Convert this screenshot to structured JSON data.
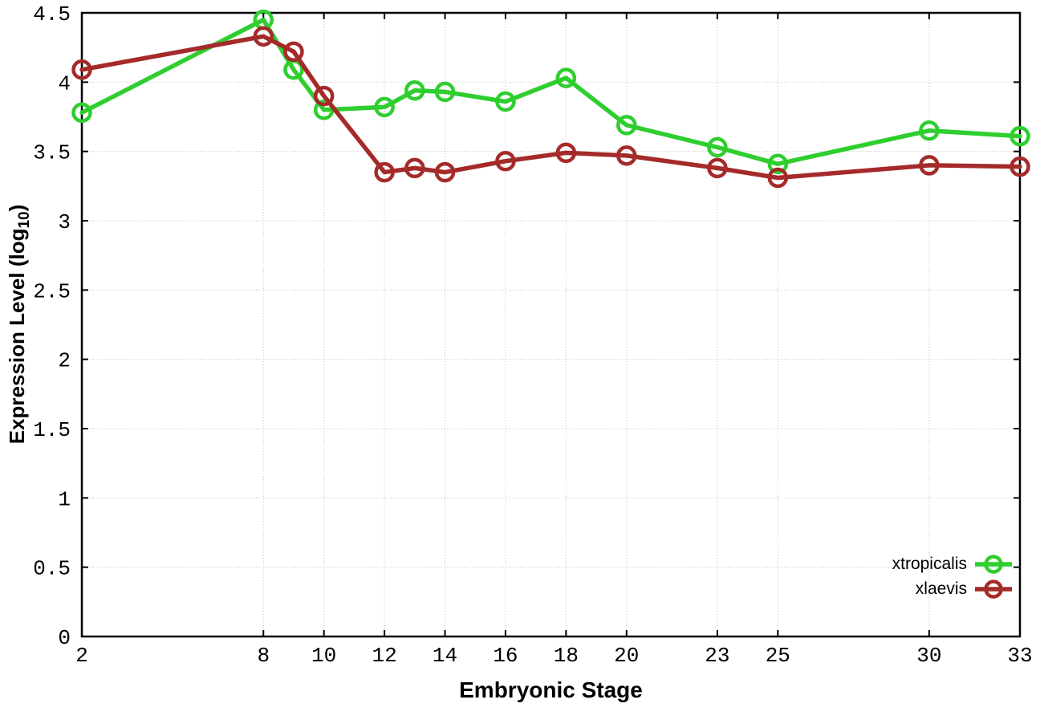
{
  "chart_data": {
    "type": "line",
    "xlabel": "Embryonic Stage",
    "ylabel": "Expression Level (log10)",
    "ylabel_parts": {
      "prefix": "Expression Level (log",
      "sub": "10",
      "suffix": ")"
    },
    "xlim": [
      2,
      33
    ],
    "ylim": [
      0,
      4.5
    ],
    "x_ticks": [
      2,
      8,
      10,
      12,
      14,
      16,
      18,
      20,
      23,
      25,
      30,
      33
    ],
    "x_tick_labels": [
      "2",
      "8",
      "10",
      "12",
      "14",
      "16",
      "18",
      "20",
      "23",
      "25",
      "30",
      "33"
    ],
    "y_ticks": [
      0,
      0.5,
      1,
      1.5,
      2,
      2.5,
      3,
      3.5,
      4,
      4.5
    ],
    "y_tick_labels": [
      "0",
      "0.5",
      "1",
      "1.5",
      "2",
      "2.5",
      "3",
      "3.5",
      "4",
      "4.5"
    ],
    "grid": true,
    "legend_position": "inside-bottom-right",
    "marker": "open-circle",
    "x": [
      2,
      8,
      9,
      10,
      12,
      13,
      14,
      16,
      18,
      20,
      23,
      25,
      30,
      33
    ],
    "series": [
      {
        "name": "xtropicalis",
        "color": "#2FCE2F",
        "values": [
          3.78,
          4.45,
          4.09,
          3.8,
          3.82,
          3.94,
          3.93,
          3.86,
          4.03,
          3.69,
          3.53,
          3.41,
          3.65,
          3.61
        ]
      },
      {
        "name": "xlaevis",
        "color": "#A52A2A",
        "values": [
          4.09,
          4.33,
          4.22,
          3.9,
          3.35,
          3.38,
          3.35,
          3.43,
          3.49,
          3.47,
          3.38,
          3.31,
          3.4,
          3.39
        ]
      }
    ],
    "colors": {
      "grid": "#bdbdbd",
      "axis": "#000000",
      "background": "#ffffff"
    }
  }
}
